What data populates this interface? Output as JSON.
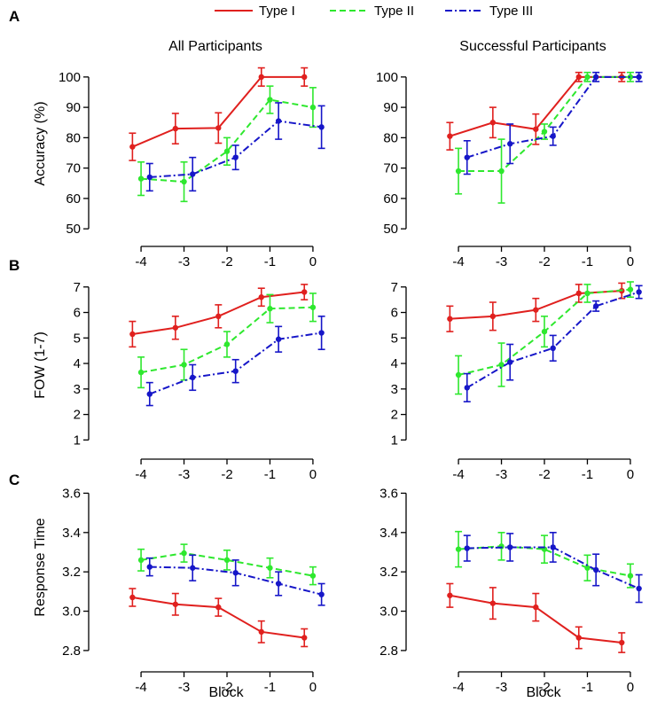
{
  "legend": [
    {
      "label": "Type I",
      "color": "#e0201e",
      "dash": "solid"
    },
    {
      "label": "Type II",
      "color": "#2ee82e",
      "dash": "dashed"
    },
    {
      "label": "Type III",
      "color": "#1616c8",
      "dash": "dashdot"
    }
  ],
  "column_titles": [
    "All Participants",
    "Successful Participants"
  ],
  "panel_labels": [
    "A",
    "B",
    "C"
  ],
  "chart_data": [
    {
      "type": "line",
      "panel": "A",
      "column": "All Participants",
      "xlabel": "",
      "ylabel": "Accuracy (%)",
      "x": [
        -4,
        -3,
        -2,
        -1,
        0
      ],
      "xlim": [
        -4.6,
        0.6
      ],
      "ylim": [
        48,
        102
      ],
      "yticks": [
        50,
        60,
        70,
        80,
        90,
        100
      ],
      "series": [
        {
          "name": "Type I",
          "x": [
            -4.2,
            -3.2,
            -2.2,
            -1.2,
            -0.2
          ],
          "values": [
            77,
            83,
            83.2,
            100,
            100
          ],
          "err": [
            4.5,
            5,
            5,
            3,
            3
          ]
        },
        {
          "name": "Type II",
          "x": [
            -4,
            -3,
            -2,
            -1,
            0
          ],
          "values": [
            66.5,
            65.5,
            75.5,
            92.5,
            90
          ],
          "err": [
            5.5,
            6.5,
            4.5,
            4.5,
            6.5
          ]
        },
        {
          "name": "Type III",
          "x": [
            -3.8,
            -2.8,
            -1.8,
            -0.8,
            0.2
          ],
          "values": [
            67,
            68,
            73.5,
            85.5,
            83.5
          ],
          "err": [
            4.5,
            5.5,
            4,
            6,
            7
          ]
        }
      ]
    },
    {
      "type": "line",
      "panel": "A",
      "column": "Successful Participants",
      "xlabel": "",
      "ylabel": "",
      "x": [
        -4,
        -3,
        -2,
        -1,
        0
      ],
      "xlim": [
        -4.6,
        0.6
      ],
      "ylim": [
        48,
        102
      ],
      "yticks": [
        50,
        60,
        70,
        80,
        90,
        100
      ],
      "series": [
        {
          "name": "Type I",
          "x": [
            -4.2,
            -3.2,
            -2.2,
            -1.2,
            -0.2
          ],
          "values": [
            80.5,
            85,
            82.8,
            100,
            100
          ],
          "err": [
            4.5,
            5,
            5,
            1.5,
            1.5
          ]
        },
        {
          "name": "Type II",
          "x": [
            -4,
            -3,
            -2,
            -1,
            0
          ],
          "values": [
            69,
            69,
            82,
            100,
            100
          ],
          "err": [
            7.5,
            10.5,
            2.5,
            1.5,
            1.5
          ]
        },
        {
          "name": "Type III",
          "x": [
            -3.8,
            -2.8,
            -1.8,
            -0.8,
            0.2
          ],
          "values": [
            73.5,
            78,
            80.5,
            100,
            100
          ],
          "err": [
            5.5,
            6.5,
            3,
            1.5,
            1.5
          ]
        }
      ]
    },
    {
      "type": "line",
      "panel": "B",
      "column": "All Participants",
      "xlabel": "",
      "ylabel": "FOW (1-7)",
      "x": [
        -4,
        -3,
        -2,
        -1,
        0
      ],
      "xlim": [
        -4.6,
        0.6
      ],
      "ylim": [
        0.7,
        7.2
      ],
      "yticks": [
        1,
        2,
        3,
        4,
        5,
        6,
        7
      ],
      "series": [
        {
          "name": "Type I",
          "x": [
            -4.2,
            -3.2,
            -2.2,
            -1.2,
            -0.2
          ],
          "values": [
            5.15,
            5.4,
            5.85,
            6.6,
            6.8
          ],
          "err": [
            0.5,
            0.45,
            0.45,
            0.35,
            0.3
          ]
        },
        {
          "name": "Type II",
          "x": [
            -4,
            -3,
            -2,
            -1,
            0
          ],
          "values": [
            3.65,
            3.95,
            4.75,
            6.15,
            6.2
          ],
          "err": [
            0.6,
            0.6,
            0.5,
            0.55,
            0.55
          ]
        },
        {
          "name": "Type III",
          "x": [
            -3.8,
            -2.8,
            -1.8,
            -0.8,
            0.2
          ],
          "values": [
            2.8,
            3.45,
            3.7,
            4.95,
            5.2
          ],
          "err": [
            0.45,
            0.5,
            0.45,
            0.5,
            0.65
          ]
        }
      ]
    },
    {
      "type": "line",
      "panel": "B",
      "column": "Successful Participants",
      "xlabel": "",
      "ylabel": "",
      "x": [
        -4,
        -3,
        -2,
        -1,
        0
      ],
      "xlim": [
        -4.6,
        0.6
      ],
      "ylim": [
        0.7,
        7.2
      ],
      "yticks": [
        1,
        2,
        3,
        4,
        5,
        6,
        7
      ],
      "series": [
        {
          "name": "Type I",
          "x": [
            -4.2,
            -3.2,
            -2.2,
            -1.2,
            -0.2
          ],
          "values": [
            5.75,
            5.85,
            6.1,
            6.75,
            6.85
          ],
          "err": [
            0.5,
            0.55,
            0.45,
            0.35,
            0.3
          ]
        },
        {
          "name": "Type II",
          "x": [
            -4,
            -3,
            -2,
            -1,
            0
          ],
          "values": [
            3.55,
            3.95,
            5.25,
            6.75,
            6.9
          ],
          "err": [
            0.75,
            0.85,
            0.6,
            0.35,
            0.3
          ]
        },
        {
          "name": "Type III",
          "x": [
            -3.8,
            -2.8,
            -1.8,
            -0.8,
            0.2
          ],
          "values": [
            3.05,
            4.05,
            4.6,
            6.25,
            6.8
          ],
          "err": [
            0.55,
            0.7,
            0.5,
            0.2,
            0.25
          ]
        }
      ]
    },
    {
      "type": "line",
      "panel": "C",
      "column": "All Participants",
      "xlabel": "Block",
      "ylabel": "Response Time",
      "x": [
        -4,
        -3,
        -2,
        -1,
        0
      ],
      "xlim": [
        -4.6,
        0.6
      ],
      "ylim": [
        2.75,
        3.62
      ],
      "yticks": [
        2.8,
        3.0,
        3.2,
        3.4,
        3.6
      ],
      "series": [
        {
          "name": "Type I",
          "x": [
            -4.2,
            -3.2,
            -2.2,
            -1.2,
            -0.2
          ],
          "values": [
            3.07,
            3.035,
            3.02,
            2.895,
            2.865
          ],
          "err": [
            0.045,
            0.055,
            0.045,
            0.055,
            0.045
          ]
        },
        {
          "name": "Type II",
          "x": [
            -4,
            -3,
            -2,
            -1,
            0
          ],
          "values": [
            3.26,
            3.295,
            3.26,
            3.22,
            3.18
          ],
          "err": [
            0.055,
            0.045,
            0.05,
            0.05,
            0.045
          ]
        },
        {
          "name": "Type III",
          "x": [
            -3.8,
            -2.8,
            -1.8,
            -0.8,
            0.2
          ],
          "values": [
            3.225,
            3.22,
            3.195,
            3.14,
            3.085
          ],
          "err": [
            0.045,
            0.065,
            0.065,
            0.06,
            0.055
          ]
        }
      ]
    },
    {
      "type": "line",
      "panel": "C",
      "column": "Successful Participants",
      "xlabel": "Block",
      "ylabel": "",
      "x": [
        -4,
        -3,
        -2,
        -1,
        0
      ],
      "xlim": [
        -4.6,
        0.6
      ],
      "ylim": [
        2.75,
        3.62
      ],
      "yticks": [
        2.8,
        3.0,
        3.2,
        3.4,
        3.6
      ],
      "series": [
        {
          "name": "Type I",
          "x": [
            -4.2,
            -3.2,
            -2.2,
            -1.2,
            -0.2
          ],
          "values": [
            3.08,
            3.04,
            3.02,
            2.865,
            2.84
          ],
          "err": [
            0.06,
            0.08,
            0.07,
            0.055,
            0.05
          ]
        },
        {
          "name": "Type II",
          "x": [
            -4,
            -3,
            -2,
            -1,
            0
          ],
          "values": [
            3.315,
            3.33,
            3.315,
            3.22,
            3.18
          ],
          "err": [
            0.09,
            0.07,
            0.07,
            0.065,
            0.06
          ]
        },
        {
          "name": "Type III",
          "x": [
            -3.8,
            -2.8,
            -1.8,
            -0.8,
            0.2
          ],
          "values": [
            3.32,
            3.325,
            3.325,
            3.21,
            3.115
          ],
          "err": [
            0.065,
            0.07,
            0.075,
            0.08,
            0.07
          ]
        }
      ]
    }
  ]
}
